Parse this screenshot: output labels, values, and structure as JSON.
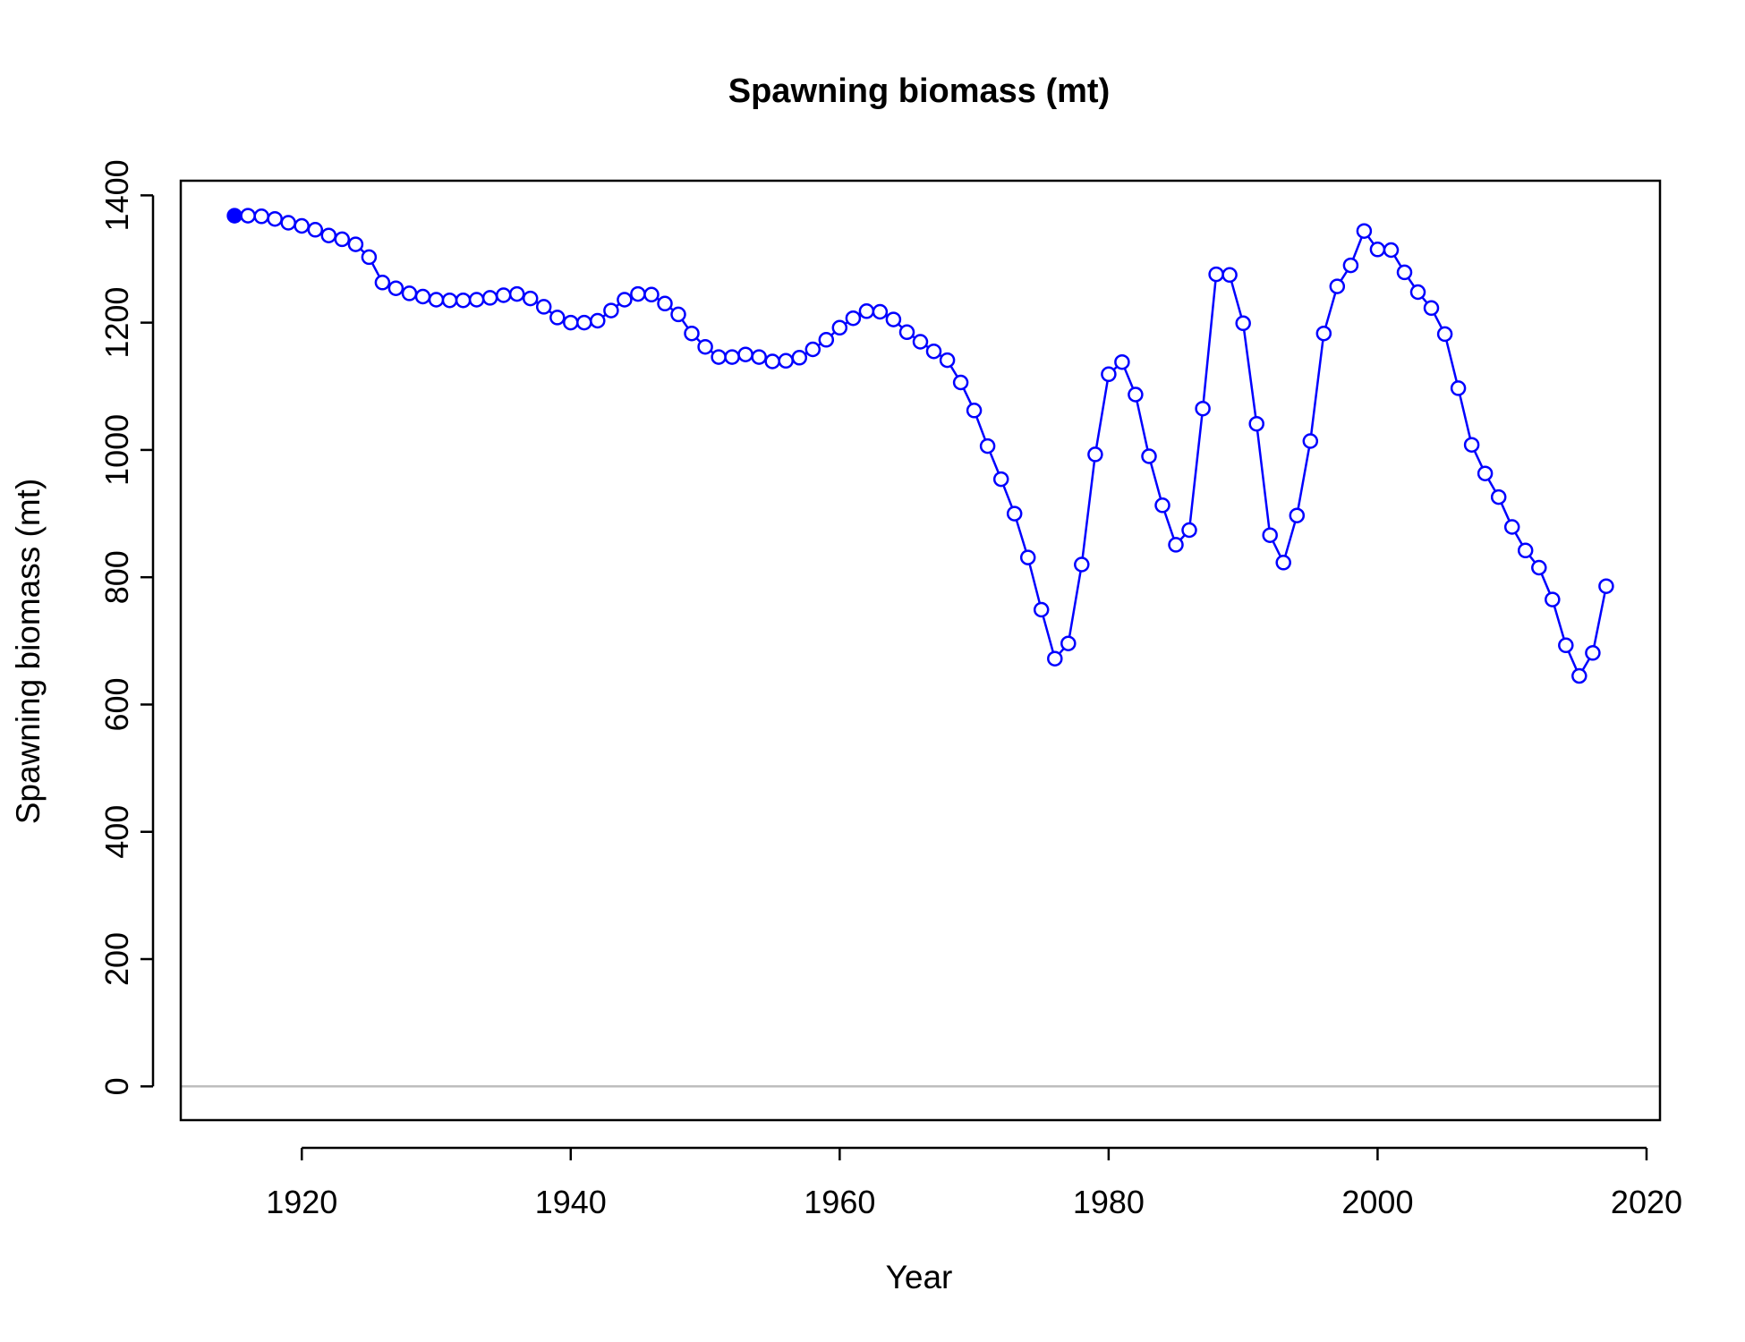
{
  "chart_data": {
    "type": "line",
    "title": "Spawning biomass (mt)",
    "xlabel": "Year",
    "ylabel": "Spawning biomass (mt)",
    "xlim": [
      1911,
      2021
    ],
    "ylim": [
      -53,
      1423
    ],
    "x_ticks": [
      1920,
      1940,
      1960,
      1980,
      2000,
      2020
    ],
    "x_tick_labels": [
      "1920",
      "1940",
      "1960",
      "1980",
      "2000",
      "2020"
    ],
    "y_ticks": [
      0,
      200,
      400,
      600,
      800,
      1000,
      1200,
      1400
    ],
    "y_tick_labels": [
      "0",
      "200",
      "400",
      "600",
      "800",
      "1000",
      "1200",
      "1400"
    ],
    "reference_line": 0,
    "grid": false,
    "colors": {
      "series": "#0000ff",
      "reference_line": "#bebebe",
      "axis": "#000000"
    },
    "series": [
      {
        "x": [
          1915,
          1916,
          1917,
          1918,
          1919,
          1920,
          1921,
          1922,
          1923,
          1924,
          1925,
          1926,
          1927,
          1928,
          1929,
          1930,
          1931,
          1932,
          1933,
          1934,
          1935,
          1936,
          1937,
          1938,
          1939,
          1940,
          1941,
          1942,
          1943,
          1944,
          1945,
          1946,
          1947,
          1948,
          1949,
          1950,
          1951,
          1952,
          1953,
          1954,
          1955,
          1956,
          1957,
          1958,
          1959,
          1960,
          1961,
          1962,
          1963,
          1964,
          1965,
          1966,
          1967,
          1968,
          1969,
          1970,
          1971,
          1972,
          1973,
          1974,
          1975,
          1976,
          1977,
          1978,
          1979,
          1980,
          1981,
          1982,
          1983,
          1984,
          1985,
          1986,
          1987,
          1988,
          1989,
          1990,
          1991,
          1992,
          1993,
          1994,
          1995,
          1996,
          1997,
          1998,
          1999,
          2000,
          2001,
          2002,
          2003,
          2004,
          2005,
          2006,
          2007,
          2008,
          2009,
          2010,
          2011,
          2012,
          2013,
          2014,
          2015,
          2016,
          2017
        ],
        "values": [
          1368,
          1368,
          1367,
          1363,
          1357,
          1352,
          1346,
          1337,
          1331,
          1323,
          1303,
          1263,
          1254,
          1246,
          1241,
          1236,
          1235,
          1235,
          1236,
          1239,
          1243,
          1245,
          1238,
          1225,
          1208,
          1200,
          1200,
          1203,
          1219,
          1236,
          1245,
          1244,
          1230,
          1213,
          1183,
          1162,
          1146,
          1146,
          1150,
          1146,
          1139,
          1140,
          1145,
          1158,
          1173,
          1192,
          1207,
          1218,
          1217,
          1205,
          1185,
          1170,
          1155,
          1141,
          1106,
          1062,
          1006,
          954,
          900,
          831,
          749,
          672,
          696,
          820,
          993,
          1119,
          1138,
          1087,
          990,
          913,
          851,
          874,
          1065,
          1276,
          1275,
          1199,
          1041,
          866,
          823,
          897,
          1014,
          1183,
          1257,
          1290,
          1344,
          1315,
          1314,
          1279,
          1248,
          1223,
          1182,
          1097,
          1008,
          963,
          926,
          879,
          842,
          815,
          765,
          693,
          645,
          681,
          786
        ]
      }
    ]
  }
}
